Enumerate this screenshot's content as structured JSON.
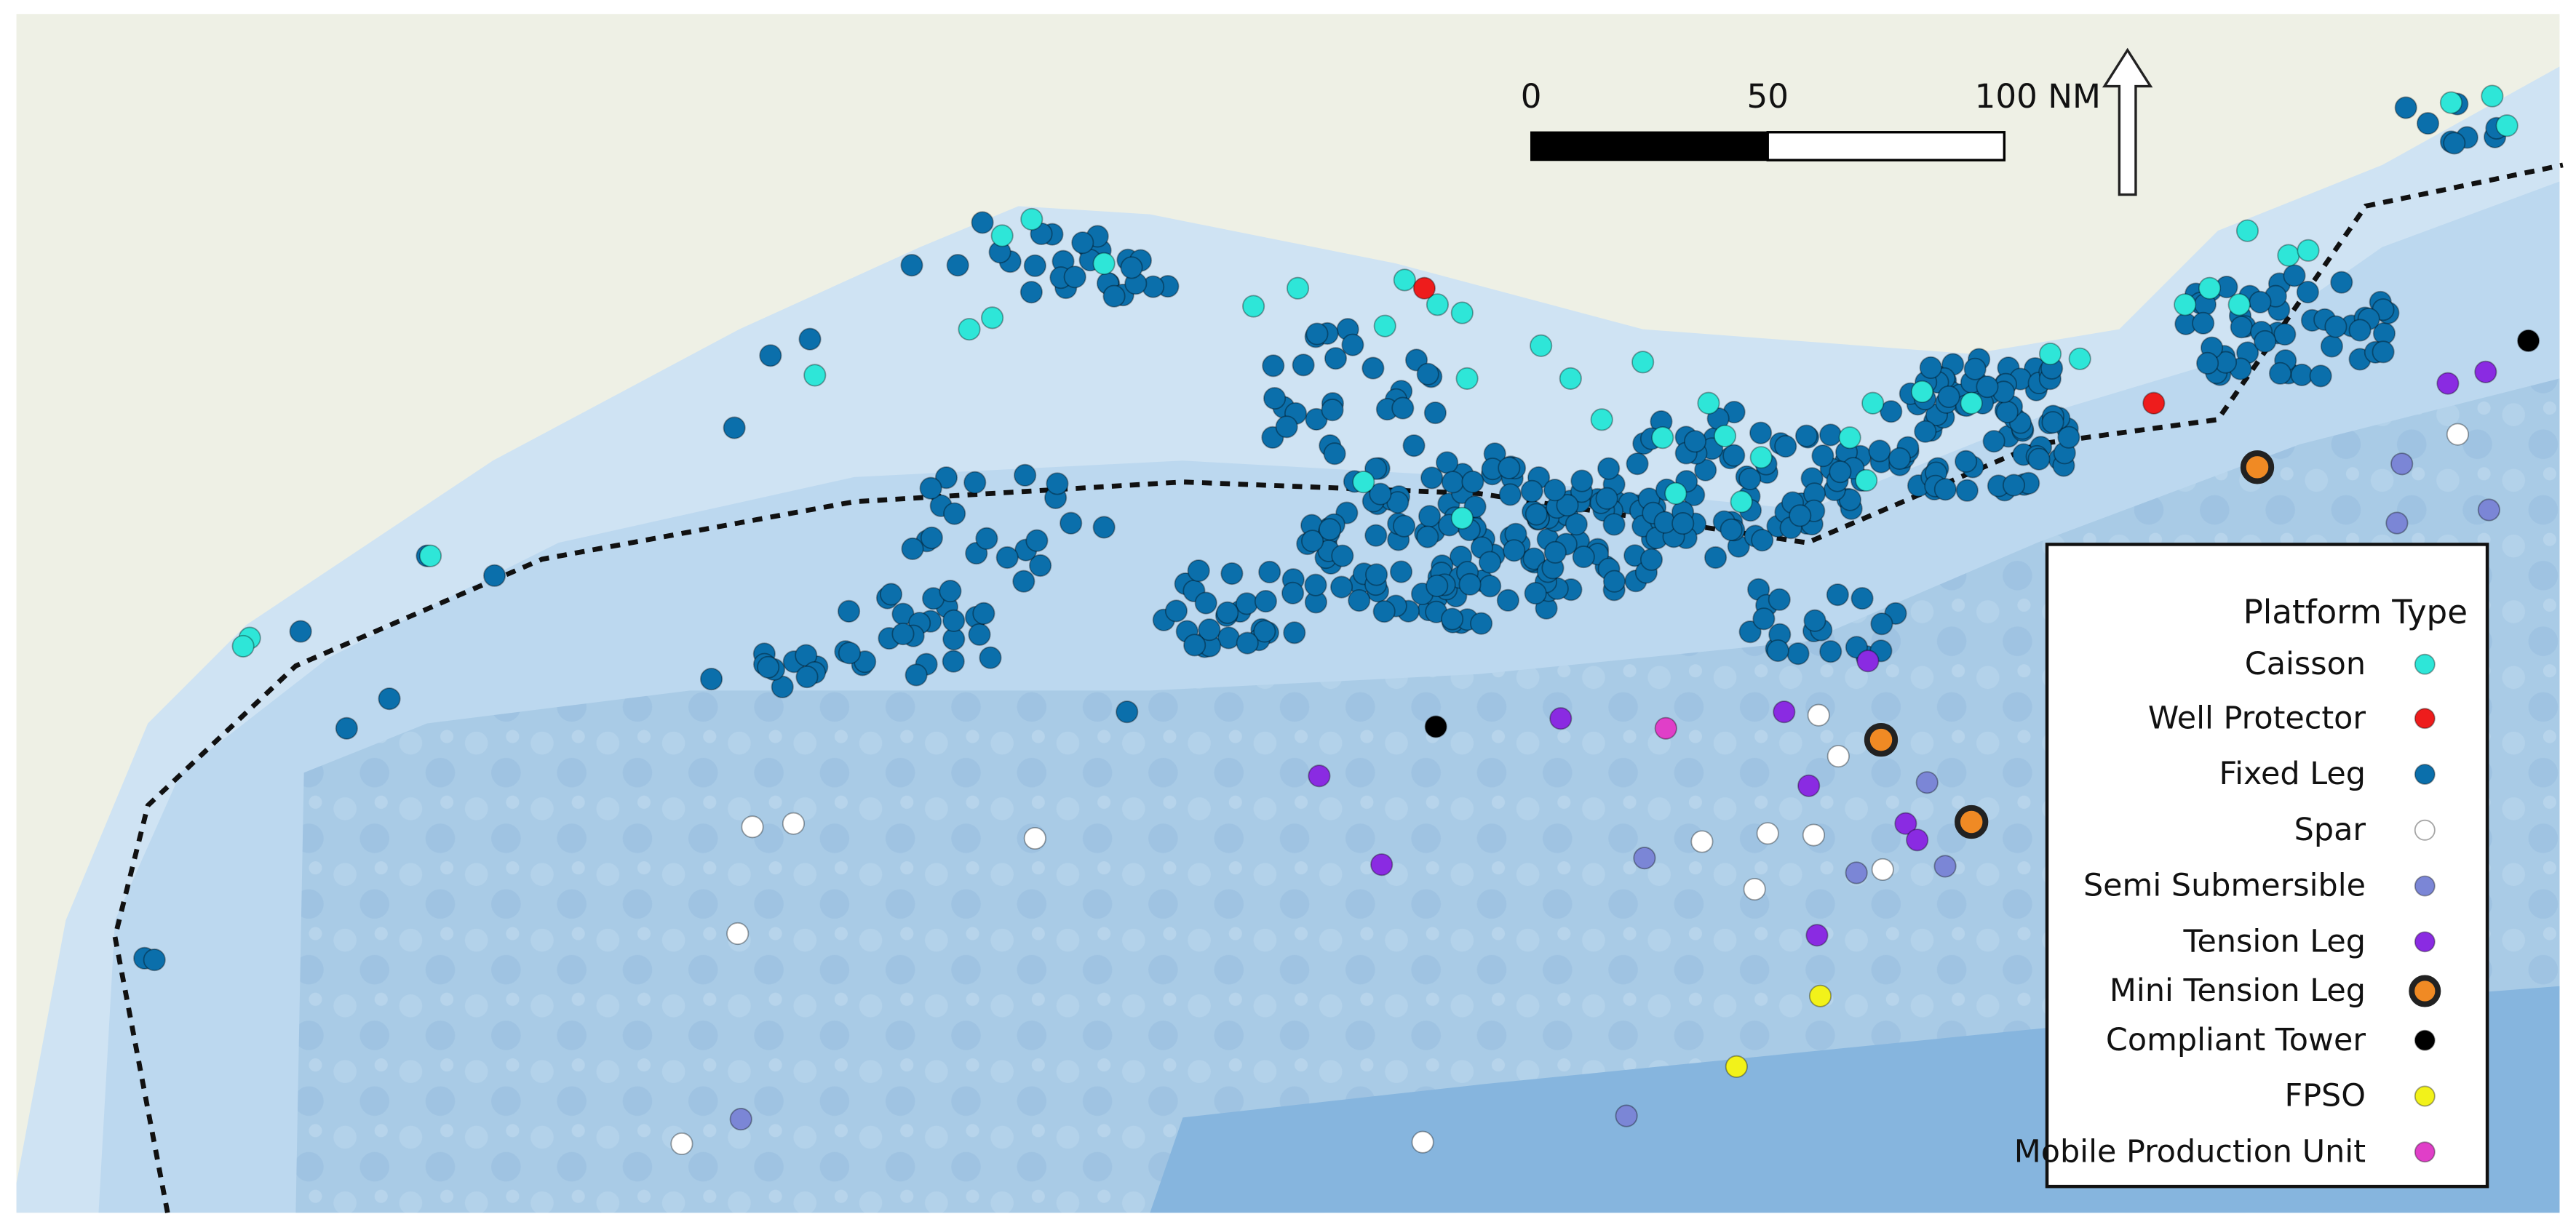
{
  "scale_bar": {
    "labels": [
      "0",
      "50",
      "100 NM"
    ]
  },
  "legend": {
    "title": "Platform Type",
    "items": [
      {
        "label": "Caisson",
        "color": "#2ee6d8"
      },
      {
        "label": "Well Protector",
        "color": "#ee1c1c"
      },
      {
        "label": "Fixed Leg",
        "color": "#0b6fab"
      },
      {
        "label": "Spar",
        "color": "#ffffff"
      },
      {
        "label": "Semi Submersible",
        "color": "#7b86d6"
      },
      {
        "label": "Tension Leg",
        "color": "#8a2be2"
      },
      {
        "label": "Mini Tension Leg",
        "color": "#f08a24",
        "ring": "#222222"
      },
      {
        "label": "Compliant Tower",
        "color": "#000000"
      },
      {
        "label": "FPSO",
        "color": "#f2f21a"
      },
      {
        "label": "Mobile Production Unit",
        "color": "#e03fc8"
      }
    ]
  }
}
